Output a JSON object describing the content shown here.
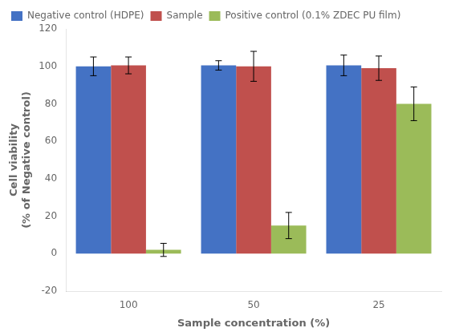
{
  "chart_data": {
    "type": "bar",
    "categories": [
      "100",
      "50",
      "25"
    ],
    "series": [
      {
        "name": "Negative control (HDPE)",
        "color": "#4472C4",
        "values": [
          100.0,
          100.5,
          100.5
        ],
        "errors": [
          5.0,
          2.5,
          5.5
        ]
      },
      {
        "name": "Sample",
        "color": "#C0504D",
        "values": [
          100.5,
          100.0,
          99.0
        ],
        "errors": [
          4.5,
          8.0,
          6.5
        ]
      },
      {
        "name": "Positive control (0.1% ZDEC PU film)",
        "color": "#9BBB59",
        "values": [
          2.0,
          15.0,
          80.0
        ],
        "errors": [
          3.5,
          7.0,
          9.0
        ]
      }
    ],
    "xlabel": "Sample concentration (%)",
    "ylabel": "Cell viability\n(% of Negative control)",
    "ylim": [
      -20,
      120
    ],
    "yticks": [
      -20,
      0,
      20,
      40,
      60,
      80,
      100,
      120
    ],
    "grid": false,
    "legend": "top"
  }
}
